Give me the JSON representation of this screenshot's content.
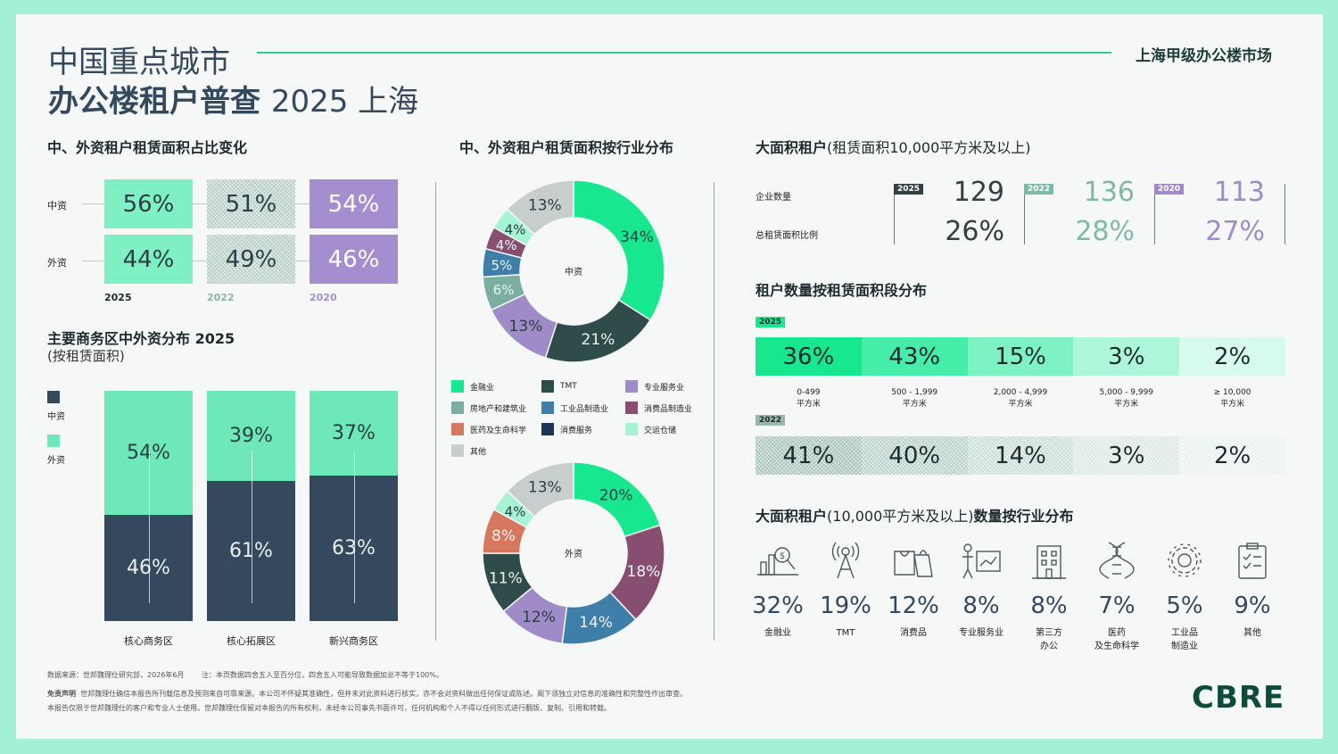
{
  "header": {
    "title_line1": "中国重点城市",
    "title_line2_bold": "办公楼租户普查",
    "title_line2_rest": "2025  上海",
    "subtitle": "上海甲级办公楼市场"
  },
  "share_change": {
    "title": "中、外资租户租赁面积占比变化",
    "row_labels": [
      "中资",
      "外资"
    ],
    "years": [
      "2025",
      "2022",
      "2020"
    ],
    "domestic": [
      "56%",
      "51%",
      "54%"
    ],
    "foreign": [
      "44%",
      "49%",
      "46%"
    ]
  },
  "cbd": {
    "title": "主要商务区中外资分布 2025",
    "subtitle": "(按租赁面积)",
    "legend": [
      "中资",
      "外资"
    ]
  },
  "industry_pie": {
    "title": "中、外资租户租赁面积按行业分布",
    "domestic_center": "中资",
    "foreign_center": "外资",
    "legend": [
      {
        "name": "金融业",
        "color": "#17e88f"
      },
      {
        "name": "TMT",
        "color": "#2f4b4a"
      },
      {
        "name": "专业服务业",
        "color": "#a08bc9"
      },
      {
        "name": "房地产和建筑业",
        "color": "#7aaea0"
      },
      {
        "name": "工业品制造业",
        "color": "#3e7ea8"
      },
      {
        "name": "消费品制造业",
        "color": "#874e72"
      },
      {
        "name": "医药及生命科学",
        "color": "#d5785f"
      },
      {
        "name": "消费服务",
        "color": "#1f3454"
      },
      {
        "name": "交运仓储",
        "color": "#a6f3d5"
      },
      {
        "name": "其他",
        "color": "#c8cecd"
      }
    ]
  },
  "large_tenants": {
    "title_bold": "大面积租户",
    "title_light": "(租赁面积10,000平方米及以上)",
    "row_labels": [
      "企业数量",
      "总租赁面积比例"
    ],
    "years": [
      "2025",
      "2022",
      "2020"
    ],
    "counts": [
      "129",
      "136",
      "113"
    ],
    "ratios": [
      "26%",
      "28%",
      "27%"
    ],
    "colors": [
      "#333f40",
      "#7fb8a6",
      "#a08bc9"
    ]
  },
  "size_dist": {
    "title": "租户数量按租赁面积段分布",
    "year_a": "2025",
    "year_b": "2022",
    "values_2025": [
      "36%",
      "43%",
      "15%",
      "3%",
      "2%"
    ],
    "values_2022": [
      "41%",
      "40%",
      "14%",
      "3%",
      "2%"
    ],
    "labels_top": [
      "0-499",
      "500 - 1,999",
      "2,000 - 4,999",
      "5,000 - 9,999",
      "≥ 10,000"
    ],
    "labels_unit": "平方米"
  },
  "large_industry": {
    "title_bold1": "大面积租户",
    "title_light": "(10,000平方米及以上)",
    "title_bold2": "数量按行业分布",
    "items": [
      {
        "pct": "32%",
        "label": "金融业",
        "label2": "",
        "icon": "finance-icon"
      },
      {
        "pct": "19%",
        "label": "TMT",
        "label2": "",
        "icon": "tower-icon"
      },
      {
        "pct": "12%",
        "label": "消费品",
        "label2": "",
        "icon": "shopping-icon"
      },
      {
        "pct": "8%",
        "label": "专业服务业",
        "label2": "",
        "icon": "presentation-icon"
      },
      {
        "pct": "8%",
        "label": "第三方",
        "label2": "办公",
        "icon": "building-icon"
      },
      {
        "pct": "7%",
        "label": "医药",
        "label2": "及生命科学",
        "icon": "dna-icon"
      },
      {
        "pct": "5%",
        "label": "工业品",
        "label2": "制造业",
        "icon": "gear-icon"
      },
      {
        "pct": "9%",
        "label": "其他",
        "label2": "",
        "icon": "clipboard-icon"
      }
    ]
  },
  "footer": {
    "source": "数据来源：世邦魏理仕研究部，2026年6月",
    "note": "注：本页数据四舍五入至百分位，四舍五入可能导致数据加总不等于100%。",
    "disclaimer_label": "免责声明",
    "disclaimer": "世邦魏理仕确信本报告所刊载信息及预测来自可靠来源。本公司不怀疑其准确性，但并未对此资料进行核实，亦不会对资料做出任何保证或陈述。阁下须独立对信息的准确性和完整性作出审查。",
    "disclaimer2": "本报告仅限于世邦魏理仕的客户和专业人士使用。世邦魏理仕保留对本报告的所有权利，未经本公司事先书面许可，任何机构和个人不得以任何形式进行翻版、复制、引用和转载。",
    "logo": "CBRE"
  },
  "chart_data": [
    {
      "type": "bar",
      "title": "中、外资租户租赁面积占比变化",
      "categories": [
        "2025",
        "2022",
        "2020"
      ],
      "series": [
        {
          "name": "中资",
          "values": [
            56,
            51,
            54
          ]
        },
        {
          "name": "外资",
          "values": [
            44,
            49,
            46
          ]
        }
      ]
    },
    {
      "type": "bar",
      "title": "主要商务区中外资分布 2025",
      "categories": [
        "核心商务区",
        "核心拓展区",
        "新兴商务区"
      ],
      "series": [
        {
          "name": "中资",
          "values": [
            46,
            61,
            63
          ],
          "color": "#34495e"
        },
        {
          "name": "外资",
          "values": [
            54,
            39,
            37
          ],
          "color": "#6ee8b8"
        }
      ]
    },
    {
      "type": "pie",
      "title": "中资",
      "categories": [
        "金融业",
        "TMT",
        "专业服务业",
        "房地产和建筑业",
        "工业品制造业",
        "消费品制造业",
        "交运仓储",
        "其他"
      ],
      "values": [
        34,
        21,
        13,
        6,
        5,
        4,
        4,
        13
      ],
      "colors": [
        "#17e88f",
        "#2f4b4a",
        "#a08bc9",
        "#7aaea0",
        "#3e7ea8",
        "#874e72",
        "#a6f3d5",
        "#c8cecd"
      ]
    },
    {
      "type": "pie",
      "title": "外资",
      "categories": [
        "金融业",
        "消费品制造业",
        "工业品制造业",
        "专业服务业",
        "TMT",
        "医药及生命科学",
        "交运仓储",
        "其他"
      ],
      "values": [
        20,
        18,
        14,
        12,
        11,
        8,
        4,
        13
      ],
      "colors": [
        "#17e88f",
        "#874e72",
        "#3e7ea8",
        "#a08bc9",
        "#2f4b4a",
        "#d5785f",
        "#a6f3d5",
        "#c8cecd"
      ]
    },
    {
      "type": "bar",
      "title": "租户数量按租赁面积段分布",
      "categories": [
        "0-499",
        "500 - 1,999",
        "2,000 - 4,999",
        "5,000 - 9,999",
        "≥ 10,000"
      ],
      "series": [
        {
          "name": "2025",
          "values": [
            36,
            43,
            15,
            3,
            2
          ]
        },
        {
          "name": "2022",
          "values": [
            41,
            40,
            14,
            3,
            2
          ]
        }
      ]
    },
    {
      "type": "bar",
      "title": "大面积租户(10,000平方米及以上)数量按行业分布",
      "categories": [
        "金融业",
        "TMT",
        "消费品",
        "专业服务业",
        "第三方办公",
        "医药及生命科学",
        "工业品制造业",
        "其他"
      ],
      "values": [
        32,
        19,
        12,
        8,
        8,
        7,
        5,
        9
      ]
    }
  ]
}
